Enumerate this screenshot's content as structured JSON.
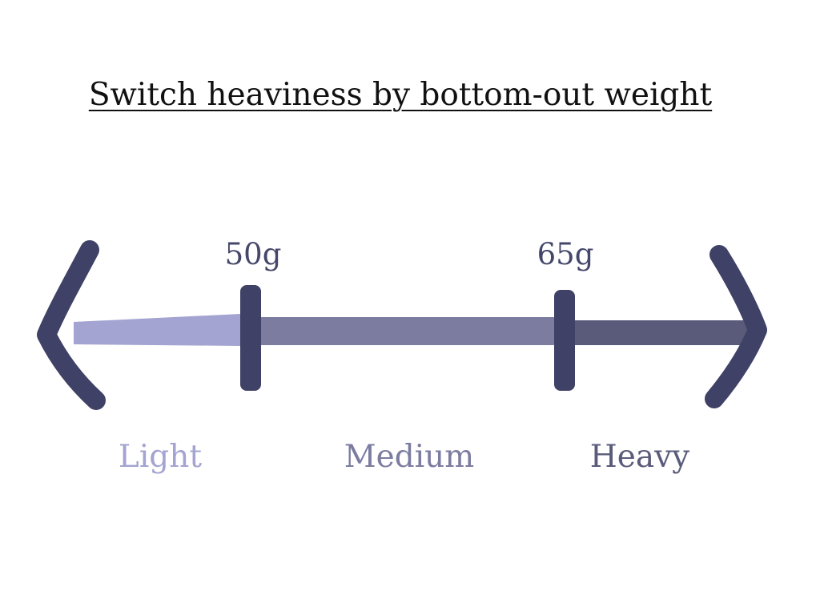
{
  "title": "Switch heaviness by bottom-out weight",
  "thresholds": [
    {
      "label": "50g",
      "value": 50
    },
    {
      "label": "65g",
      "value": 65
    }
  ],
  "categories": [
    {
      "label": "Light",
      "color": "#a3a4d1"
    },
    {
      "label": "Medium",
      "color": "#7b7ca0"
    },
    {
      "label": "Heavy",
      "color": "#5a5b7a"
    }
  ],
  "colors": {
    "arrowhead": "#3f4166",
    "tick": "#3f4166",
    "segment_light": "#a3a4d1",
    "segment_medium": "#7b7ca0",
    "segment_heavy": "#5a5b7a"
  }
}
